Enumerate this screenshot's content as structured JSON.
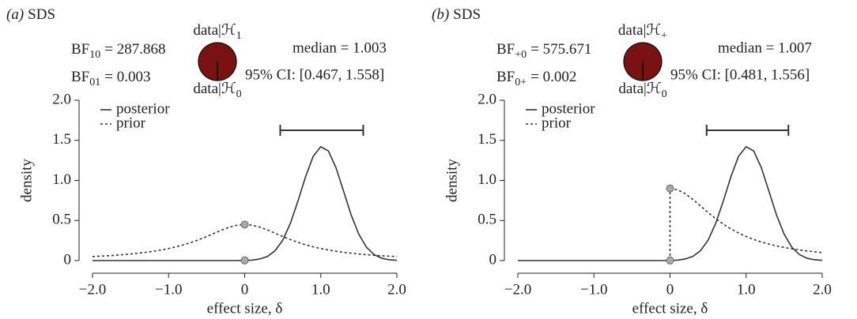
{
  "chart_data": [
    {
      "type": "line",
      "panel": "(a)",
      "title": "SDS",
      "bf": [
        {
          "name": "BF",
          "sub": "10",
          "rest": "= 287.868"
        },
        {
          "name": "BF",
          "sub": "01",
          "rest": "= 0.003"
        }
      ],
      "pie": {
        "labels": [
          {
            "text": "data|ℋ",
            "sub": "1"
          },
          {
            "text": "data|ℋ",
            "sub": "0"
          }
        ],
        "values": [
          99.7,
          0.3
        ],
        "colors": [
          "#7a1212",
          "#ffffff"
        ]
      },
      "median": "median = 1.003",
      "ci_text": "95% CI: [0.467, 1.558]",
      "ci": [
        0.467,
        1.558
      ],
      "xlabel": "effect size, δ",
      "ylabel": "density",
      "legend": "upper left",
      "xlim": [
        -2,
        2
      ],
      "ylim": [
        0,
        2
      ],
      "xticks": [
        {
          "value": -2,
          "label": "−2.0"
        },
        {
          "value": -1,
          "label": "−1.0"
        },
        0,
        {
          "value": 1,
          "label": "1.0"
        },
        {
          "value": 2,
          "label": "2.0"
        }
      ],
      "yticks": [
        0,
        0.5,
        {
          "value": 1,
          "label": "1.0"
        },
        1.5,
        {
          "value": 2,
          "label": "2.0"
        }
      ],
      "x": [
        -2,
        -1.9,
        -1.8,
        -1.7,
        -1.6,
        -1.5,
        -1.4,
        -1.3,
        -1.2,
        -1.1,
        -1,
        -0.9,
        -0.8,
        -0.7,
        -0.6,
        -0.5,
        -0.4,
        -0.3,
        -0.2,
        -0.1,
        0,
        0.1,
        0.2,
        0.3,
        0.4,
        0.5,
        0.6,
        0.7,
        0.8,
        0.9,
        1,
        1.1,
        1.2,
        1.3,
        1.4,
        1.5,
        1.6,
        1.7,
        1.8,
        1.9,
        2
      ],
      "series": [
        {
          "name": "posterior",
          "color": "#333333",
          "style": "solid",
          "values": [
            0,
            0,
            0,
            0,
            0,
            0,
            0,
            0,
            0,
            0,
            0,
            0,
            0,
            0,
            0,
            0,
            0,
            0,
            0,
            0,
            0.002,
            0.006,
            0.02,
            0.052,
            0.123,
            0.254,
            0.463,
            0.742,
            1.046,
            1.3,
            1.421,
            1.368,
            1.159,
            0.864,
            0.567,
            0.328,
            0.167,
            0.075,
            0.029,
            0.01,
            0.003
          ]
        },
        {
          "name": "prior",
          "color": "#333333",
          "style": "dotted",
          "values": [
            0.05,
            0.055,
            0.06,
            0.066,
            0.074,
            0.082,
            0.092,
            0.103,
            0.116,
            0.132,
            0.15,
            0.172,
            0.197,
            0.227,
            0.262,
            0.3,
            0.341,
            0.382,
            0.417,
            0.441,
            0.45,
            0.441,
            0.417,
            0.382,
            0.341,
            0.3,
            0.262,
            0.227,
            0.197,
            0.172,
            0.15,
            0.132,
            0.116,
            0.103,
            0.092,
            0.082,
            0.074,
            0.066,
            0.06,
            0.055,
            0.05
          ]
        }
      ]
    },
    {
      "type": "line",
      "panel": "(b)",
      "title": "SDS",
      "bf": [
        {
          "name": "BF",
          "sub": "+0",
          "rest": "= 575.671"
        },
        {
          "name": "BF",
          "sub": "0+",
          "rest": "= 0.002"
        }
      ],
      "pie": {
        "labels": [
          {
            "text": "data|ℋ",
            "sub": "+"
          },
          {
            "text": "data|ℋ",
            "sub": "0"
          }
        ],
        "values": [
          99.8,
          0.2
        ],
        "colors": [
          "#7a1212",
          "#ffffff"
        ]
      },
      "median": "median = 1.007",
      "ci_text": "95% CI: [0.481, 1.556]",
      "ci": [
        0.481,
        1.556
      ],
      "xlabel": "effect size, δ",
      "ylabel": "density",
      "legend": "upper left",
      "xlim": [
        -2,
        2
      ],
      "ylim": [
        0,
        2
      ],
      "xticks": [
        {
          "value": -2,
          "label": "−2.0"
        },
        {
          "value": -1,
          "label": "−1.0"
        },
        0,
        {
          "value": 1,
          "label": "1.0"
        },
        {
          "value": 2,
          "label": "2.0"
        }
      ],
      "yticks": [
        0,
        0.5,
        {
          "value": 1,
          "label": "1.0"
        },
        1.5,
        {
          "value": 2,
          "label": "2.0"
        }
      ],
      "x": [
        -2,
        -1.9,
        -1.8,
        -1.7,
        -1.6,
        -1.5,
        -1.4,
        -1.3,
        -1.2,
        -1.1,
        -1,
        -0.9,
        -0.8,
        -0.7,
        -0.6,
        -0.5,
        -0.4,
        -0.3,
        -0.2,
        -0.1,
        0,
        0.1,
        0.2,
        0.3,
        0.4,
        0.5,
        0.6,
        0.7,
        0.8,
        0.9,
        1,
        1.1,
        1.2,
        1.3,
        1.4,
        1.5,
        1.6,
        1.7,
        1.8,
        1.9,
        2
      ],
      "series": [
        {
          "name": "posterior",
          "color": "#333333",
          "style": "solid",
          "values": [
            0,
            0,
            0,
            0,
            0,
            0,
            0,
            0,
            0,
            0,
            0,
            0,
            0,
            0,
            0,
            0,
            0,
            0,
            0,
            0,
            0.002,
            0.006,
            0.02,
            0.052,
            0.123,
            0.254,
            0.463,
            0.742,
            1.046,
            1.3,
            1.421,
            1.368,
            1.159,
            0.864,
            0.567,
            0.328,
            0.167,
            0.075,
            0.029,
            0.01,
            0.003
          ]
        },
        {
          "name": "prior",
          "color": "#333333",
          "style": "dotted",
          "values": [
            null,
            null,
            null,
            null,
            null,
            null,
            null,
            null,
            null,
            null,
            null,
            null,
            null,
            null,
            null,
            null,
            null,
            null,
            null,
            null,
            0.9,
            0.883,
            0.834,
            0.763,
            0.682,
            0.6,
            0.523,
            0.455,
            0.395,
            0.344,
            0.3,
            0.263,
            0.232,
            0.206,
            0.183,
            0.164,
            0.147,
            0.133,
            0.12,
            0.11,
            0.1
          ]
        }
      ]
    }
  ]
}
